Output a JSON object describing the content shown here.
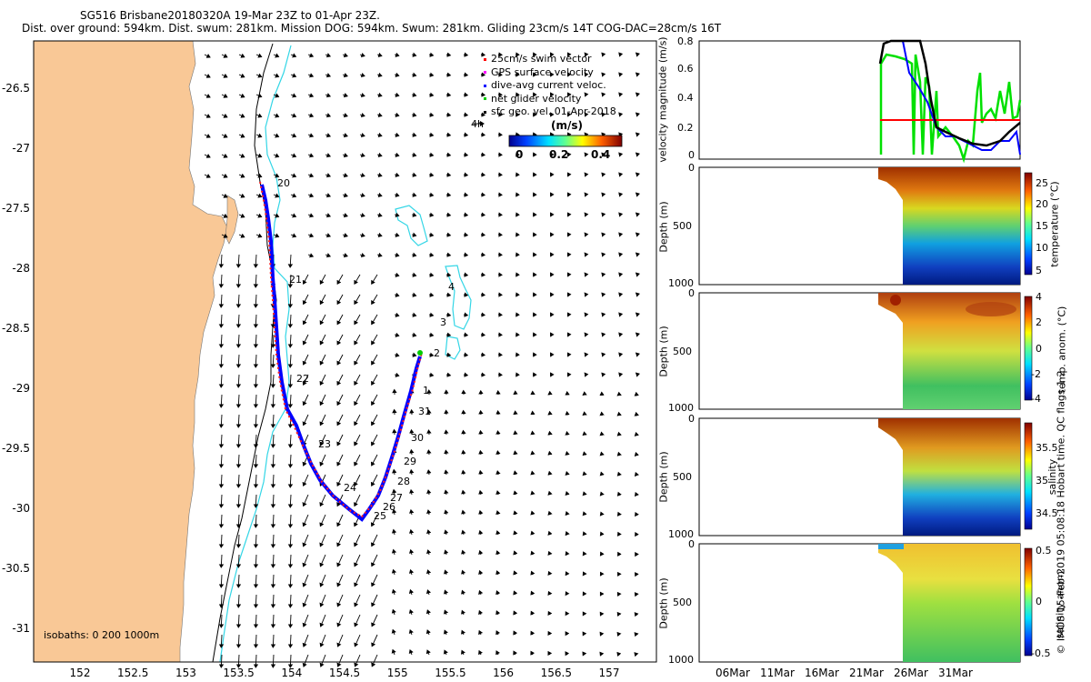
{
  "header": {
    "line1": "SG516 Brisbane20180320A 19-Mar 23Z to 01-Apr 23Z.",
    "line2": "Dist. over ground: 594km. Dist. swum: 281km. Mission DOG: 594km. Swum: 281km. Gliding 23cm/s 14T COG-DAC=28cm/s 16T"
  },
  "map": {
    "lon_ticks": [
      "152",
      "152.5",
      "153",
      "153.5",
      "154",
      "154.5",
      "155",
      "155.5",
      "156",
      "156.5",
      "157"
    ],
    "lat_ticks": [
      "-26.5",
      "-27",
      "-27.5",
      "-28",
      "-28.5",
      "-29",
      "-29.5",
      "-30",
      "-30.5",
      "-31"
    ],
    "isobaths_label": "isobaths: 0   200  1000m",
    "legend": [
      {
        "label": "25cm/s swim vector",
        "color": "#ff0000"
      },
      {
        "label": "GPS surface velocity",
        "color": "#ff00ff"
      },
      {
        "label": "dive-avg current veloc.",
        "color": "#0000ff"
      },
      {
        "label": "net glider velocity",
        "color": "#00cc00"
      },
      {
        "label": "sfc geo. vel. 01-Apr-2018",
        "color": "#000000"
      }
    ],
    "vector_scale_label": "4h",
    "colorbar": {
      "title": "(m/s)",
      "ticks": [
        "0",
        "0.2",
        "0.4"
      ]
    },
    "day_labels": [
      {
        "text": "20"
      },
      {
        "text": "21"
      },
      {
        "text": "22"
      },
      {
        "text": "23"
      },
      {
        "text": "24"
      },
      {
        "text": "25"
      },
      {
        "text": "26"
      },
      {
        "text": "27"
      },
      {
        "text": "28"
      },
      {
        "text": "29"
      },
      {
        "text": "30"
      },
      {
        "text": "31"
      },
      {
        "text": "1"
      },
      {
        "text": "2"
      },
      {
        "text": "3"
      },
      {
        "text": "4"
      }
    ],
    "colors": {
      "land": "#f9c896",
      "isobath_200": "#33d6e6",
      "isobath_1000": "#000000"
    }
  },
  "panels": {
    "velocity": {
      "ylabel": "velocity magnitude (m/s)",
      "yticks": [
        "0",
        "0.2",
        "0.4",
        "0.6",
        "0.8"
      ]
    },
    "temperature": {
      "ylabel": "Depth (m)",
      "yticks": [
        "0",
        "500",
        "1000"
      ],
      "cb_label": "temperature (°C)",
      "cb_ticks": [
        "25",
        "20",
        "15",
        "10",
        "5"
      ]
    },
    "temp_anom": {
      "ylabel": "Depth (m)",
      "yticks": [
        "0",
        "500",
        "1000"
      ],
      "cb_label": "temp. anom. (°C)",
      "cb_ticks": [
        "4",
        "2",
        "0",
        "-2",
        "-4"
      ]
    },
    "salinity": {
      "ylabel": "Depth (m)",
      "yticks": [
        "0",
        "500",
        "1000"
      ],
      "cb_label": "salinity",
      "cb_ticks": [
        "35.5",
        "35",
        "34.5"
      ]
    },
    "sal_anom": {
      "ylabel": "Depth (m)",
      "yticks": [
        "0",
        "500",
        "1000"
      ],
      "cb_label": "salinity anom.",
      "cb_ticks": [
        "0.5",
        "0",
        "-0.5"
      ]
    },
    "time_ticks": [
      "06Mar",
      "11Mar",
      "16Mar",
      "21Mar",
      "26Mar",
      "31Mar"
    ]
  },
  "footer": {
    "credit": "© IMOS 15-Feb-2019 05:08:18 Hobart time. QC flags 1  2"
  }
}
